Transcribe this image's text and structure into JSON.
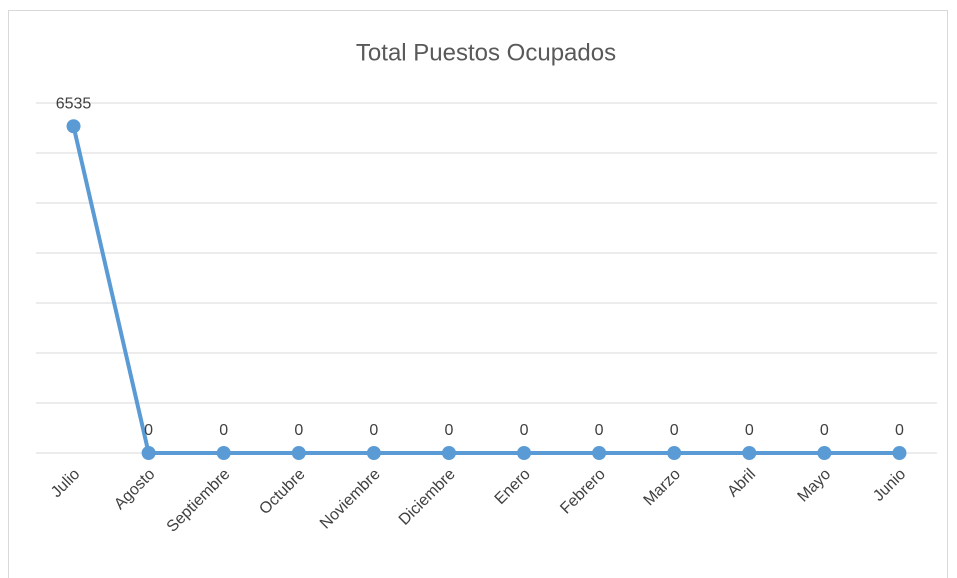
{
  "chart_data": {
    "type": "line",
    "title": "Total Puestos Ocupados",
    "categories": [
      "Julio",
      "Agosto",
      "Septiembre",
      "Octubre",
      "Noviembre",
      "Diciembre",
      "Enero",
      "Febrero",
      "Marzo",
      "Abril",
      "Mayo",
      "Junio"
    ],
    "values": [
      6535,
      0,
      0,
      0,
      0,
      0,
      0,
      0,
      0,
      0,
      0,
      0
    ],
    "color": "#5b9bd5",
    "ylim": [
      0,
      7000
    ],
    "yticks": [
      0,
      1000,
      2000,
      3000,
      4000,
      5000,
      6000,
      7000
    ],
    "grid": true,
    "data_labels": true
  }
}
